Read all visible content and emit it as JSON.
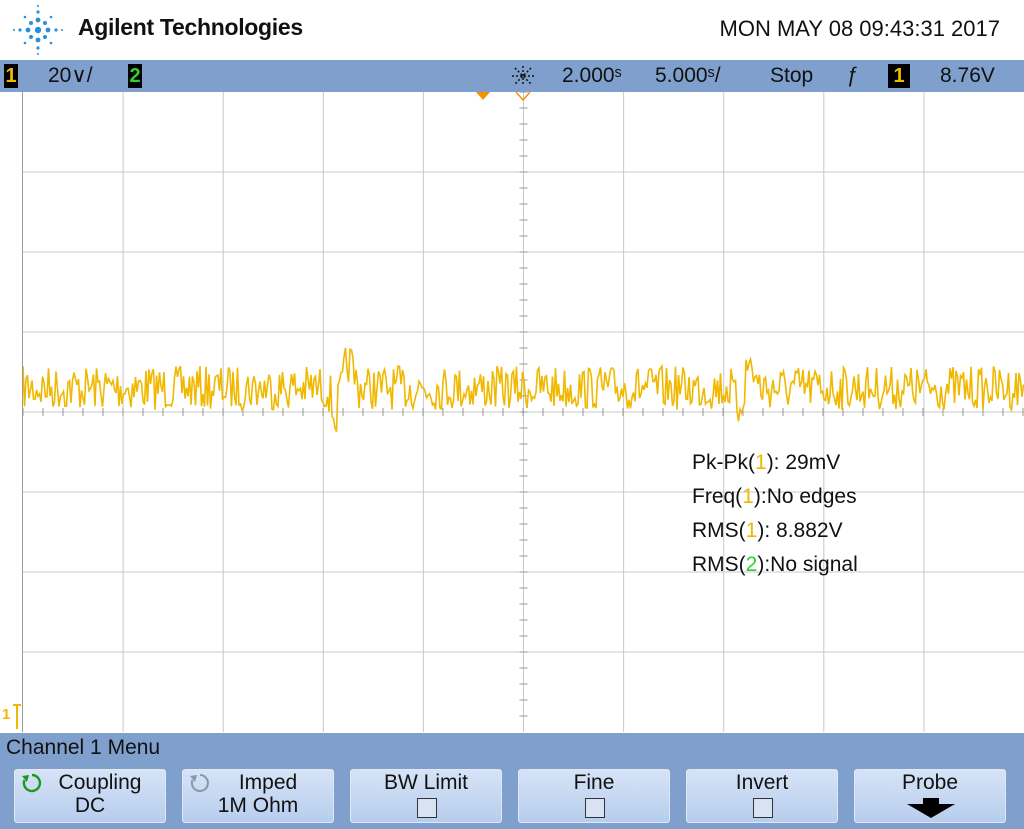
{
  "header": {
    "brand": "Agilent Technologies",
    "datetime": "MON MAY 08 09:43:31 2017"
  },
  "status": {
    "ch1_number": "1",
    "ch1_scale": "20⁵/",
    "ch2_number": "2",
    "time_ref": "2.000ˢ",
    "time_scale": "5.000ˢ/",
    "run_state": "Stop",
    "trigger_slope": "ƒ",
    "trigger_channel": "1",
    "trigger_level": "8.76V",
    "colors": {
      "ch1": "#f0b800",
      "ch2": "#2fd12f",
      "bar": "#7f9fcc"
    }
  },
  "ch1_scale_display": "20∨/",
  "ch1_ground_marker": "1",
  "measurements": {
    "pkpk": {
      "prefix": "Pk-Pk(",
      "ch": "1",
      "suffix": "): 29mV"
    },
    "freq": {
      "prefix": "Freq(",
      "ch": "1",
      "suffix": "):No edges"
    },
    "rms1": {
      "prefix": "RMS(",
      "ch": "1",
      "suffix": "): 8.882V"
    },
    "rms2": {
      "prefix": "RMS(",
      "ch": "2",
      "suffix": "):No signal"
    }
  },
  "menu": {
    "title": "Channel 1  Menu",
    "softkeys": [
      {
        "label": "Coupling",
        "value": "DC",
        "icon": "rotate-icon"
      },
      {
        "label": "Imped",
        "value": "1M Ohm",
        "icon": "rotate-icon"
      },
      {
        "label": "BW Limit",
        "value": "",
        "icon": "checkbox"
      },
      {
        "label": "Fine",
        "value": "",
        "icon": "checkbox"
      },
      {
        "label": "Invert",
        "value": "",
        "icon": "checkbox"
      },
      {
        "label": "Probe",
        "value": "",
        "icon": "down-arrow-icon"
      }
    ]
  }
}
